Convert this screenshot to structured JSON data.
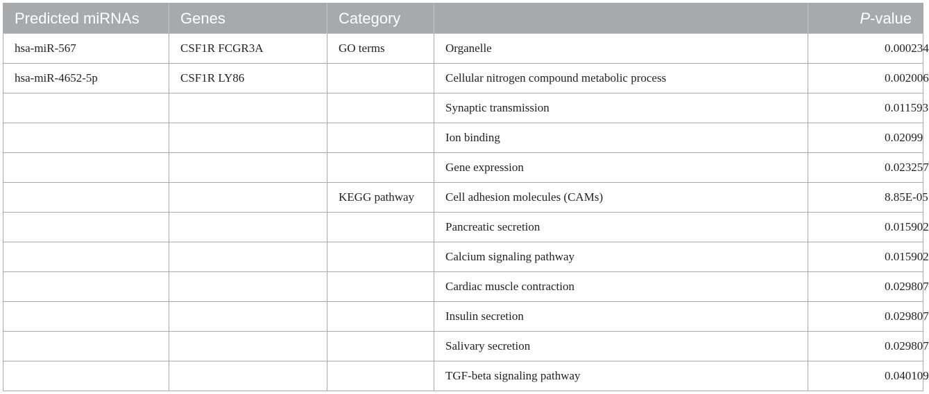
{
  "table": {
    "headers": {
      "mirna": "Predicted miRNAs",
      "genes": "Genes",
      "category": "Category",
      "term": "",
      "p_prefix": "P",
      "p_suffix": "-value"
    },
    "rows": [
      {
        "mirna": "hsa-miR-567",
        "genes": "CSF1R FCGR3A",
        "category": "GO terms",
        "term": "Organelle",
        "p": "0.000234"
      },
      {
        "mirna": "hsa-miR-4652-5p",
        "genes": "CSF1R LY86",
        "category": "",
        "term": "Cellular nitrogen compound metabolic process",
        "p": "0.002006"
      },
      {
        "mirna": "",
        "genes": "",
        "category": "",
        "term": "Synaptic transmission",
        "p": "0.011593"
      },
      {
        "mirna": "",
        "genes": "",
        "category": "",
        "term": "Ion binding",
        "p": "0.02099"
      },
      {
        "mirna": "",
        "genes": "",
        "category": "",
        "term": "Gene expression",
        "p": "0.023257"
      },
      {
        "mirna": "",
        "genes": "",
        "category": "KEGG pathway",
        "term": "Cell adhesion molecules (CAMs)",
        "p": "8.85E-05"
      },
      {
        "mirna": "",
        "genes": "",
        "category": "",
        "term": "Pancreatic secretion",
        "p": "0.015902"
      },
      {
        "mirna": "",
        "genes": "",
        "category": "",
        "term": "Calcium signaling pathway",
        "p": "0.015902"
      },
      {
        "mirna": "",
        "genes": "",
        "category": "",
        "term": "Cardiac muscle contraction",
        "p": "0.029807"
      },
      {
        "mirna": "",
        "genes": "",
        "category": "",
        "term": "Insulin secretion",
        "p": "0.029807"
      },
      {
        "mirna": "",
        "genes": "",
        "category": "",
        "term": "Salivary secretion",
        "p": "0.029807"
      },
      {
        "mirna": "",
        "genes": "",
        "category": "",
        "term": "TGF-beta signaling pathway",
        "p": "0.040109"
      }
    ]
  }
}
